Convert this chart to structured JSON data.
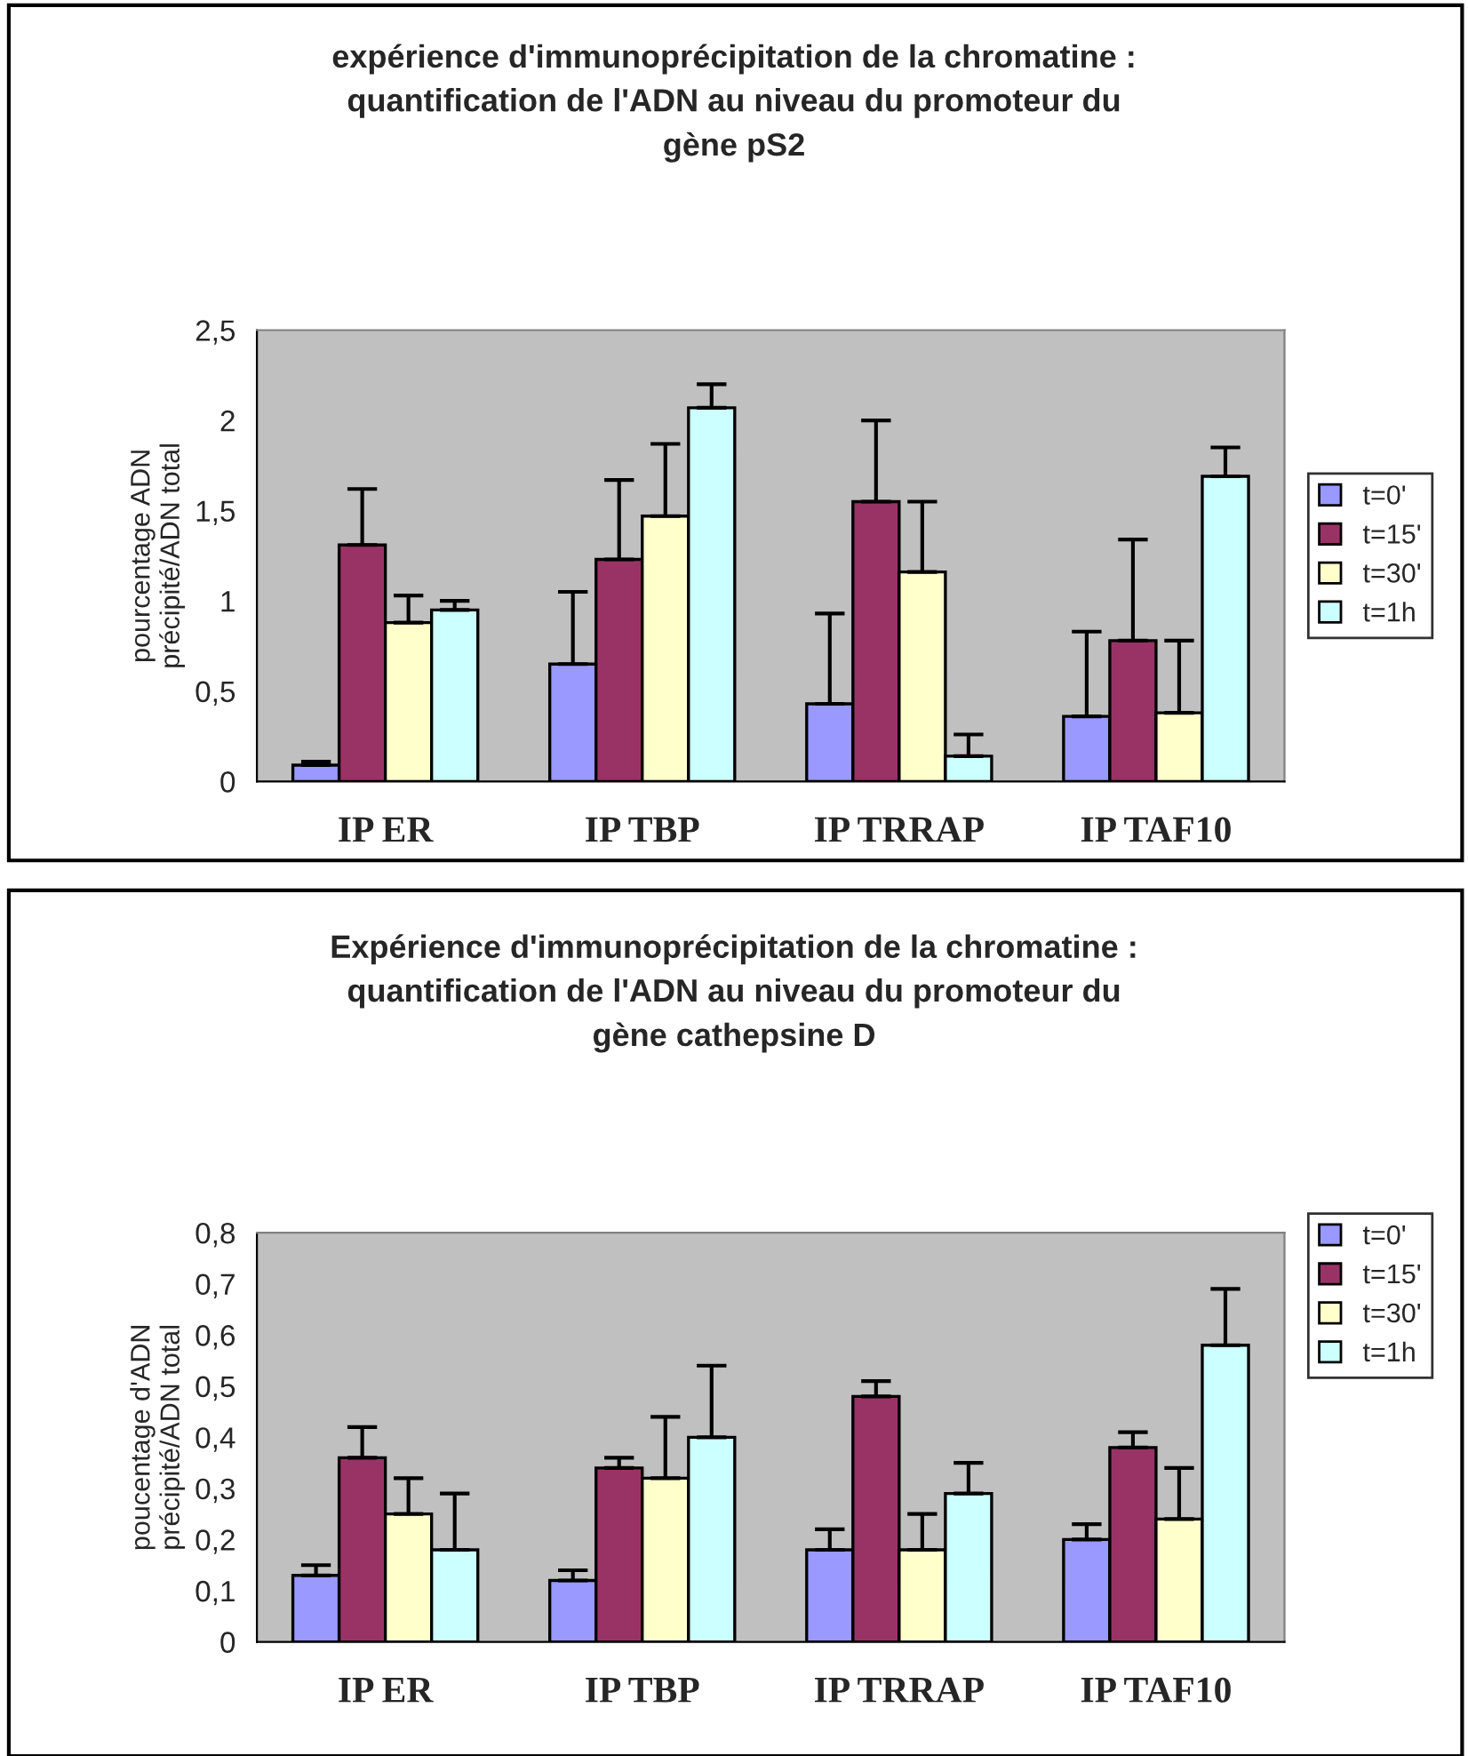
{
  "chart_data": [
    {
      "type": "bar",
      "title": "expérience d'immunoprécipitation de la chromatine :\nquantification de l'ADN au niveau du promoteur du\ngène pS2",
      "ylabel": "pourcentage ADN\nprécipité/ADN total",
      "categories": [
        "IP ER",
        "IP TBP",
        "IP TRRAP",
        "IP TAF10"
      ],
      "series": [
        {
          "name": "t=0'",
          "color": "#9999ff",
          "values": [
            0.09,
            0.65,
            0.43,
            0.36
          ],
          "errors": [
            [
              0.09,
              0.11
            ],
            [
              0.65,
              1.05
            ],
            [
              0.43,
              0.93
            ],
            [
              0.36,
              0.83
            ]
          ]
        },
        {
          "name": "t=15'",
          "color": "#993366",
          "values": [
            1.31,
            1.23,
            1.55,
            0.78
          ],
          "errors": [
            [
              1.31,
              1.62
            ],
            [
              1.23,
              1.67
            ],
            [
              1.55,
              2.0
            ],
            [
              0.78,
              1.34
            ]
          ]
        },
        {
          "name": "t=30'",
          "color": "#ffffcc",
          "values": [
            0.88,
            1.47,
            1.16,
            0.38
          ],
          "errors": [
            [
              0.88,
              1.03
            ],
            [
              1.47,
              1.87
            ],
            [
              1.16,
              1.55
            ],
            [
              0.38,
              0.78
            ]
          ]
        },
        {
          "name": "t=1h",
          "color": "#ccffff",
          "values": [
            0.95,
            2.07,
            0.14,
            1.69
          ],
          "errors": [
            [
              0.95,
              1.0
            ],
            [
              2.07,
              2.2
            ],
            [
              0.14,
              0.26
            ],
            [
              1.69,
              1.85
            ]
          ]
        }
      ],
      "ylim": [
        0,
        2.5
      ],
      "yticks": [
        0,
        {
          "value": 0.5,
          "label": "0,5"
        },
        1,
        {
          "value": 1.5,
          "label": "1,5"
        },
        2,
        {
          "value": 2.5,
          "label": "2,5"
        }
      ],
      "grid": false,
      "legend": "right"
    },
    {
      "type": "bar",
      "title": "Expérience d'immunoprécipitation de la chromatine :\nquantification de l'ADN au niveau du promoteur du\ngène cathepsine D",
      "ylabel": "poucentage d'ADN\nprécipité/ADN total",
      "categories": [
        "IP ER",
        "IP TBP",
        "IP TRRAP",
        "IP TAF10"
      ],
      "series": [
        {
          "name": "t=0'",
          "color": "#9999ff",
          "values": [
            0.13,
            0.12,
            0.18,
            0.2
          ],
          "errors": [
            [
              0.13,
              0.15
            ],
            [
              0.12,
              0.14
            ],
            [
              0.18,
              0.22
            ],
            [
              0.2,
              0.23
            ]
          ]
        },
        {
          "name": "t=15'",
          "color": "#993366",
          "values": [
            0.36,
            0.34,
            0.48,
            0.38
          ],
          "errors": [
            [
              0.36,
              0.42
            ],
            [
              0.34,
              0.36
            ],
            [
              0.48,
              0.51
            ],
            [
              0.38,
              0.41
            ]
          ]
        },
        {
          "name": "t=30'",
          "color": "#ffffcc",
          "values": [
            0.25,
            0.32,
            0.18,
            0.24
          ],
          "errors": [
            [
              0.25,
              0.32
            ],
            [
              0.32,
              0.44
            ],
            [
              0.18,
              0.25
            ],
            [
              0.24,
              0.34
            ]
          ]
        },
        {
          "name": "t=1h",
          "color": "#ccffff",
          "values": [
            0.18,
            0.4,
            0.29,
            0.58
          ],
          "errors": [
            [
              0.18,
              0.29
            ],
            [
              0.4,
              0.54
            ],
            [
              0.29,
              0.35
            ],
            [
              0.58,
              0.69
            ]
          ]
        }
      ],
      "ylim": [
        0,
        0.8
      ],
      "yticks": [
        0,
        {
          "value": 0.1,
          "label": "0,1"
        },
        {
          "value": 0.2,
          "label": "0,2"
        },
        {
          "value": 0.3,
          "label": "0,3"
        },
        {
          "value": 0.4,
          "label": "0,4"
        },
        {
          "value": 0.5,
          "label": "0,5"
        },
        {
          "value": 0.6,
          "label": "0,6"
        },
        {
          "value": 0.7,
          "label": "0,7"
        },
        {
          "value": 0.8,
          "label": "0,8"
        }
      ],
      "grid": false,
      "legend": "top right"
    }
  ]
}
